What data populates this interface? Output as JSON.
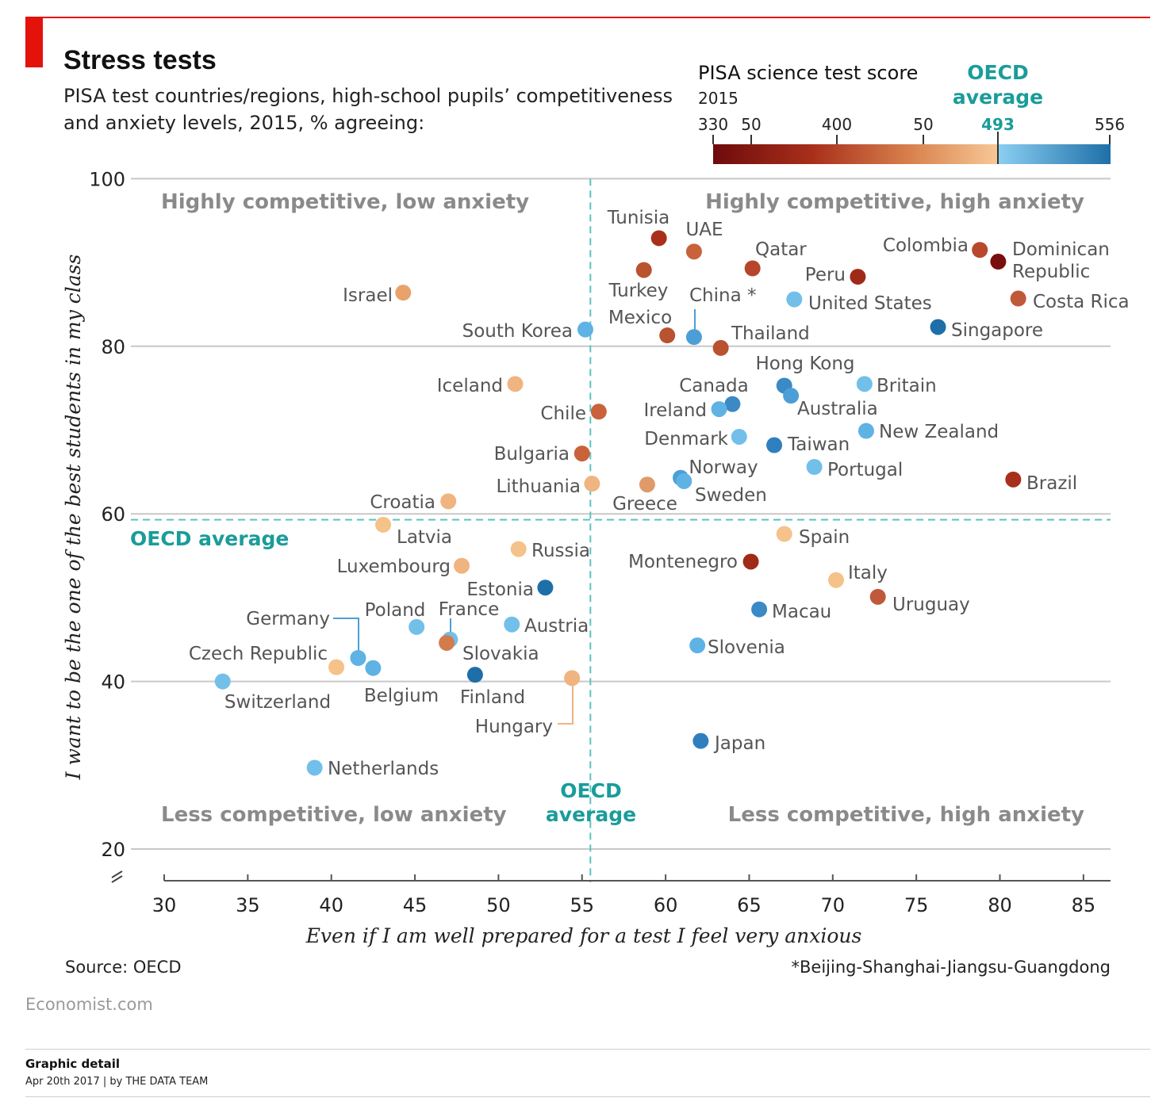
{
  "header": {
    "title": "Stress tests",
    "subtitle_line1": "PISA test countries/regions, high-school pupils’ competitiveness",
    "subtitle_line2": "and anxiety levels, 2015, % agreeing:"
  },
  "legend": {
    "title": "PISA science test score",
    "year": "2015",
    "oecd_line1": "OECD",
    "oecd_line2": "average",
    "ticks": [
      "330",
      "50",
      "400",
      "50",
      "493",
      "556"
    ],
    "colors": {
      "low": "#7a0e0e",
      "mid": "#f5c28a",
      "high_start": "#7fc6ee",
      "high_end": "#1e6fa8",
      "accent": "#1a9c9a"
    }
  },
  "chart_data": {
    "type": "scatter",
    "xlabel": "Even if I am well prepared for a test I feel very anxious",
    "ylabel": "I want to be the one of the best students in my class",
    "xlim": [
      30,
      86
    ],
    "ylim": [
      17,
      100
    ],
    "xticks": [
      30,
      35,
      40,
      45,
      50,
      55,
      60,
      65,
      70,
      75,
      80,
      85
    ],
    "yticks": [
      20,
      40,
      60,
      80,
      100
    ],
    "grid": true,
    "oecd_average": {
      "x": 55.5,
      "y": 59.3,
      "label_line1": "OECD",
      "label_line2": "average",
      "label_horizontal": "OECD average"
    },
    "quadrants": {
      "top_left": "Highly competitive, low anxiety",
      "top_right": "Highly competitive, high anxiety",
      "bottom_left": "Less competitive, low anxiety",
      "bottom_right": "Less competitive, high anxiety"
    },
    "points": [
      {
        "name": "Tunisia",
        "x": 59.6,
        "y": 92.9,
        "color": "#a8301b"
      },
      {
        "name": "UAE",
        "x": 61.7,
        "y": 91.3,
        "color": "#c9623a"
      },
      {
        "name": "Qatar",
        "x": 65.2,
        "y": 89.3,
        "color": "#b5462b"
      },
      {
        "name": "Turkey",
        "x": 58.7,
        "y": 89.1,
        "color": "#b8522f"
      },
      {
        "name": "Colombia",
        "x": 78.8,
        "y": 91.5,
        "color": "#b8472b"
      },
      {
        "name": "Dominican Republic",
        "x": 79.9,
        "y": 90.1,
        "color": "#7a0e0e"
      },
      {
        "name": "Peru",
        "x": 71.5,
        "y": 88.3,
        "color": "#a02a18"
      },
      {
        "name": "Israel",
        "x": 44.3,
        "y": 86.4,
        "color": "#e8a26a"
      },
      {
        "name": "United States",
        "x": 67.7,
        "y": 85.6,
        "color": "#72bfea"
      },
      {
        "name": "Costa Rica",
        "x": 81.1,
        "y": 85.7,
        "color": "#c0593a"
      },
      {
        "name": "Singapore",
        "x": 76.3,
        "y": 82.3,
        "color": "#1e6fa8"
      },
      {
        "name": "South Korea",
        "x": 55.2,
        "y": 82.0,
        "color": "#5fb2e4"
      },
      {
        "name": "Mexico",
        "x": 60.1,
        "y": 81.3,
        "color": "#b8522f"
      },
      {
        "name": "China*",
        "x": 61.7,
        "y": 81.1,
        "color": "#4c9fd6"
      },
      {
        "name": "Thailand",
        "x": 63.3,
        "y": 79.8,
        "color": "#b8522f"
      },
      {
        "name": "Iceland",
        "x": 51.0,
        "y": 75.5,
        "color": "#f0b480"
      },
      {
        "name": "Hong Kong",
        "x": 67.1,
        "y": 75.3,
        "color": "#3b89c5"
      },
      {
        "name": "Australia",
        "x": 67.5,
        "y": 74.1,
        "color": "#4c9fd6"
      },
      {
        "name": "Britain",
        "x": 71.9,
        "y": 75.5,
        "color": "#72bfea"
      },
      {
        "name": "Canada",
        "x": 64.0,
        "y": 73.1,
        "color": "#3b89c5"
      },
      {
        "name": "Ireland",
        "x": 63.2,
        "y": 72.5,
        "color": "#5fb2e4"
      },
      {
        "name": "Chile",
        "x": 56.0,
        "y": 72.2,
        "color": "#c9623a"
      },
      {
        "name": "New Zealand",
        "x": 72.0,
        "y": 69.9,
        "color": "#5fb2e4"
      },
      {
        "name": "Denmark",
        "x": 64.4,
        "y": 69.2,
        "color": "#72bfea"
      },
      {
        "name": "Taiwan",
        "x": 66.5,
        "y": 68.2,
        "color": "#2f7fbf"
      },
      {
        "name": "Bulgaria",
        "x": 55.0,
        "y": 67.2,
        "color": "#c9623a"
      },
      {
        "name": "Portugal",
        "x": 68.9,
        "y": 65.6,
        "color": "#72bfea"
      },
      {
        "name": "Brazil",
        "x": 80.8,
        "y": 64.1,
        "color": "#a8301b"
      },
      {
        "name": "Norway",
        "x": 60.9,
        "y": 64.3,
        "color": "#4c9fd6"
      },
      {
        "name": "Sweden",
        "x": 61.1,
        "y": 63.9,
        "color": "#5fb2e4"
      },
      {
        "name": "Lithuania",
        "x": 55.6,
        "y": 63.6,
        "color": "#f0b480"
      },
      {
        "name": "Greece",
        "x": 58.9,
        "y": 63.5,
        "color": "#e09a6a"
      },
      {
        "name": "Croatia",
        "x": 47.0,
        "y": 61.5,
        "color": "#f0b480"
      },
      {
        "name": "Latvia",
        "x": 43.1,
        "y": 58.7,
        "color": "#f5c28a"
      },
      {
        "name": "Spain",
        "x": 67.1,
        "y": 57.6,
        "color": "#f5c28a"
      },
      {
        "name": "Russia",
        "x": 51.2,
        "y": 55.8,
        "color": "#f5c28a"
      },
      {
        "name": "Montenegro",
        "x": 65.1,
        "y": 54.3,
        "color": "#a02a18"
      },
      {
        "name": "Luxembourg",
        "x": 47.8,
        "y": 53.8,
        "color": "#f0b480"
      },
      {
        "name": "Italy",
        "x": 70.2,
        "y": 52.1,
        "color": "#f5c28a"
      },
      {
        "name": "Estonia",
        "x": 52.8,
        "y": 51.2,
        "color": "#1e6fa8"
      },
      {
        "name": "Uruguay",
        "x": 72.7,
        "y": 50.1,
        "color": "#c0593a"
      },
      {
        "name": "Macau",
        "x": 65.6,
        "y": 48.6,
        "color": "#3b89c5"
      },
      {
        "name": "Austria",
        "x": 50.8,
        "y": 46.8,
        "color": "#72bfea"
      },
      {
        "name": "Poland",
        "x": 45.1,
        "y": 46.5,
        "color": "#72bfea"
      },
      {
        "name": "France",
        "x": 47.1,
        "y": 45.0,
        "color": "#72bfea"
      },
      {
        "name": "Slovakia",
        "x": 46.9,
        "y": 44.6,
        "color": "#d27c4e"
      },
      {
        "name": "Slovenia",
        "x": 61.9,
        "y": 44.3,
        "color": "#5fb2e4"
      },
      {
        "name": "Germany",
        "x": 41.6,
        "y": 42.8,
        "color": "#5fb2e4"
      },
      {
        "name": "Czech Republic",
        "x": 40.3,
        "y": 41.7,
        "color": "#f5c28a"
      },
      {
        "name": "Belgium",
        "x": 42.5,
        "y": 41.6,
        "color": "#5fb2e4"
      },
      {
        "name": "Finland",
        "x": 48.6,
        "y": 40.8,
        "color": "#1e6fa8"
      },
      {
        "name": "Hungary",
        "x": 54.4,
        "y": 40.4,
        "color": "#f0b480"
      },
      {
        "name": "Switzerland",
        "x": 33.5,
        "y": 40.0,
        "color": "#72bfea"
      },
      {
        "name": "Japan",
        "x": 62.1,
        "y": 32.9,
        "color": "#2f7fbf"
      },
      {
        "name": "Netherlands",
        "x": 39.0,
        "y": 29.7,
        "color": "#72bfea"
      }
    ]
  },
  "labels": {
    "Tunisia": "Tunisia",
    "UAE": "UAE",
    "Qatar": "Qatar",
    "Turkey": "Turkey",
    "Colombia": "Colombia",
    "Dominican_1": "Dominican",
    "Dominican_2": "Republic",
    "Peru": "Peru",
    "Israel": "Israel",
    "United States": "United States",
    "Costa Rica": "Costa Rica",
    "Singapore": "Singapore",
    "South Korea": "South Korea",
    "Mexico": "Mexico",
    "China*": "China *",
    "Thailand": "Thailand",
    "Iceland": "Iceland",
    "Hong Kong": "Hong Kong",
    "Australia": "Australia",
    "Britain": "Britain",
    "Canada": "Canada",
    "Ireland": "Ireland",
    "Chile": "Chile",
    "New Zealand": "New Zealand",
    "Denmark": "Denmark",
    "Taiwan": "Taiwan",
    "Bulgaria": "Bulgaria",
    "Portugal": "Portugal",
    "Brazil": "Brazil",
    "Norway": "Norway",
    "Sweden": "Sweden",
    "Lithuania": "Lithuania",
    "Greece": "Greece",
    "Croatia": "Croatia",
    "Latvia": "Latvia",
    "Spain": "Spain",
    "Russia": "Russia",
    "Montenegro": "Montenegro",
    "Luxembourg": "Luxembourg",
    "Italy": "Italy",
    "Estonia": "Estonia",
    "Uruguay": "Uruguay",
    "Macau": "Macau",
    "Austria": "Austria",
    "Poland": "Poland",
    "France": "France",
    "Slovakia": "Slovakia",
    "Slovenia": "Slovenia",
    "Germany": "Germany",
    "Czech Republic": "Czech Republic",
    "Belgium": "Belgium",
    "Finland": "Finland",
    "Hungary": "Hungary",
    "Switzerland": "Switzerland",
    "Japan": "Japan",
    "Netherlands": "Netherlands"
  },
  "notes": {
    "source": "Source: OECD",
    "footnote": "*Beijing-Shanghai-Jiangsu-Guangdong",
    "brand": "Economist.com"
  },
  "footer": {
    "section": "Graphic detail",
    "dateline": "Apr 20th 2017 | by THE DATA TEAM"
  }
}
